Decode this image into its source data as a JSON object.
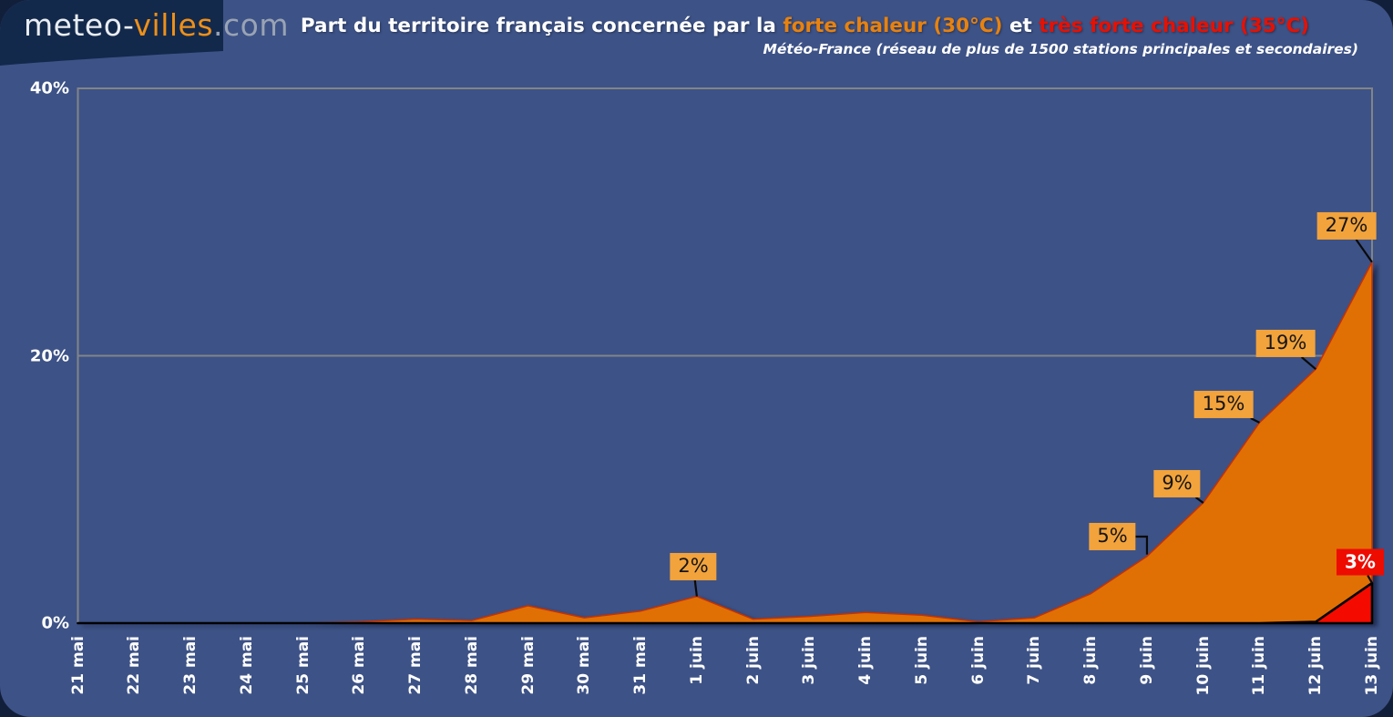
{
  "logo": {
    "part1": "meteo-",
    "part2": "villes",
    "part3": ".com"
  },
  "header": {
    "title_part1": "Part du territoire français concernée par la ",
    "title_strong_heat": "forte chaleur (30°C)",
    "title_connector": " et ",
    "title_very_strong_heat": "très forte chaleur (35°C)",
    "subtitle": "Météo-France (réseau de plus de 1500 stations principales et secondaires)"
  },
  "colors": {
    "panel_background": "#3d5286",
    "page_background": "#121f3a",
    "logo_background": "#13294b",
    "axis_and_grid": "#828487",
    "strong_heat_area": "#e07004",
    "very_strong_heat_area": "#f50a00",
    "label_box_orange": "#f2a33c",
    "label_box_red": "#ee0b00",
    "title_orange": "#e8820e",
    "title_red": "#e81000"
  },
  "chart_data": {
    "type": "area",
    "title": "Part du territoire français concernée par la forte chaleur (30°C) et très forte chaleur (35°C)",
    "subtitle": "Météo-France (réseau de plus de 1500 stations principales et secondaires)",
    "xlabel": "",
    "ylabel": "",
    "ylim": [
      0,
      40
    ],
    "grid": "horizontal",
    "legend_position": "none",
    "x": [
      "21 mai",
      "22 mai",
      "23 mai",
      "24 mai",
      "25 mai",
      "26 mai",
      "27 mai",
      "28 mai",
      "29 mai",
      "30 mai",
      "31 mai",
      "1 juin",
      "2 juin",
      "3 juin",
      "4 juin",
      "5 juin",
      "6 juin",
      "7 juin",
      "8 juin",
      "9 juin",
      "10 juin",
      "11 juin",
      "12 juin",
      "13 juin"
    ],
    "yticks": [
      {
        "label": "0%",
        "value": 0
      },
      {
        "label": "20%",
        "value": 20
      },
      {
        "label": "40%",
        "value": 40
      }
    ],
    "series": [
      {
        "name": "forte chaleur (30°C)",
        "color": "#e07004",
        "edge_color": "#c83000",
        "values": [
          0,
          0,
          0,
          0,
          0,
          0.1,
          0.3,
          0.2,
          1.3,
          0.4,
          0.9,
          2,
          0.3,
          0.5,
          0.8,
          0.6,
          0.1,
          0.4,
          2.2,
          5,
          9,
          15,
          19,
          27
        ]
      },
      {
        "name": "très forte chaleur (35°C)",
        "color": "#f50a00",
        "edge_color": "#000000",
        "values": [
          0,
          0,
          0,
          0,
          0,
          0,
          0,
          0,
          0,
          0,
          0,
          0,
          0,
          0,
          0,
          0,
          0,
          0,
          0,
          0,
          0,
          0,
          0.1,
          3
        ]
      }
    ],
    "annotations": [
      {
        "label": "2%",
        "x": "1 juin",
        "series": 0,
        "value": 2
      },
      {
        "label": "5%",
        "x": "9 juin",
        "series": 0,
        "value": 5
      },
      {
        "label": "9%",
        "x": "10 juin",
        "series": 0,
        "value": 9
      },
      {
        "label": "15%",
        "x": "11 juin",
        "series": 0,
        "value": 15
      },
      {
        "label": "19%",
        "x": "12 juin",
        "series": 0,
        "value": 19
      },
      {
        "label": "27%",
        "x": "13 juin",
        "series": 0,
        "value": 27
      },
      {
        "label": "3%",
        "x": "13 juin",
        "series": 1,
        "value": 3
      }
    ]
  }
}
